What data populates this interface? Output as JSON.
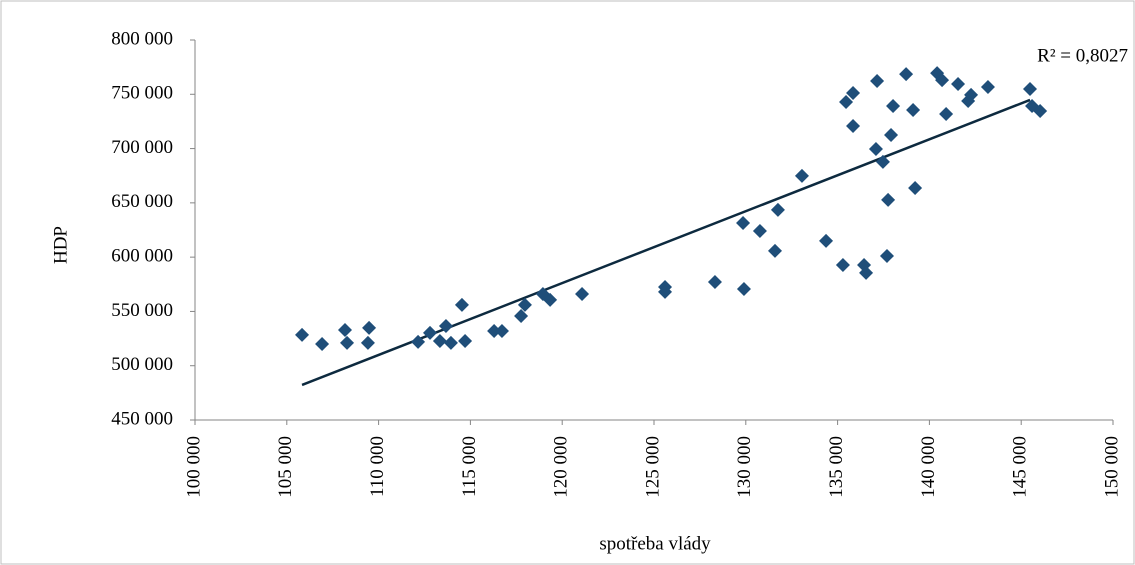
{
  "chart_data": {
    "type": "scatter",
    "x_label": "spotřeba vlády",
    "y_label": "HDP",
    "annotation": "R² = 0,8027",
    "color": "#1f4e79",
    "trendline_color": "#0d2a3f",
    "x": [
      105830,
      106920,
      108170,
      108280,
      109480,
      109420,
      112150,
      112800,
      113340,
      113670,
      113940,
      114540,
      114710,
      116290,
      116720,
      117760,
      117970,
      118950,
      119340,
      121080,
      125600,
      125600,
      128320,
      129850,
      129900,
      130770,
      131590,
      131750,
      133060,
      134370,
      135290,
      135460,
      135840,
      135840,
      136440,
      136550,
      137150,
      137090,
      137470,
      137690,
      137750,
      137910,
      138020,
      138730,
      139110,
      139220,
      140420,
      140690,
      140910,
      141560,
      142110,
      142270,
      143190,
      145480,
      145590,
      146030
    ],
    "values": [
      528400,
      520000,
      532900,
      521000,
      534800,
      521000,
      521900,
      530200,
      522800,
      536600,
      521000,
      556000,
      522800,
      532000,
      532000,
      545800,
      556000,
      566100,
      560600,
      566100,
      572500,
      568000,
      577100,
      631500,
      570700,
      624100,
      605800,
      643500,
      674800,
      615000,
      592800,
      742900,
      751200,
      720800,
      592800,
      585500,
      762200,
      699600,
      687700,
      601100,
      652700,
      712500,
      739200,
      768600,
      735500,
      663700,
      769500,
      763100,
      731800,
      759500,
      743800,
      749400,
      756700,
      754900,
      739200,
      734600
    ],
    "trendline": {
      "x": [
        105830,
        145480
      ],
      "values": [
        482300,
        744800
      ]
    },
    "xlim": [
      100000,
      150000
    ],
    "xticks": [
      {
        "value": 100000,
        "label": "100 000"
      },
      {
        "value": 105000,
        "label": "105 000"
      },
      {
        "value": 110000,
        "label": "110 000"
      },
      {
        "value": 115000,
        "label": "115 000"
      },
      {
        "value": 120000,
        "label": "120 000"
      },
      {
        "value": 125000,
        "label": "125 000"
      },
      {
        "value": 130000,
        "label": "130 000"
      },
      {
        "value": 135000,
        "label": "135 000"
      },
      {
        "value": 140000,
        "label": "140 000"
      },
      {
        "value": 145000,
        "label": "145 000"
      },
      {
        "value": 150000,
        "label": "150 000"
      }
    ],
    "ylim": [
      450000,
      800000
    ],
    "yticks": [
      {
        "value": 450000,
        "label": "450 000"
      },
      {
        "value": 500000,
        "label": "500 000"
      },
      {
        "value": 550000,
        "label": "550 000"
      },
      {
        "value": 600000,
        "label": "600 000"
      },
      {
        "value": 650000,
        "label": "650 000"
      },
      {
        "value": 700000,
        "label": "700 000"
      },
      {
        "value": 750000,
        "label": "750 000"
      },
      {
        "value": 800000,
        "label": "800 000"
      }
    ],
    "grid": false
  }
}
